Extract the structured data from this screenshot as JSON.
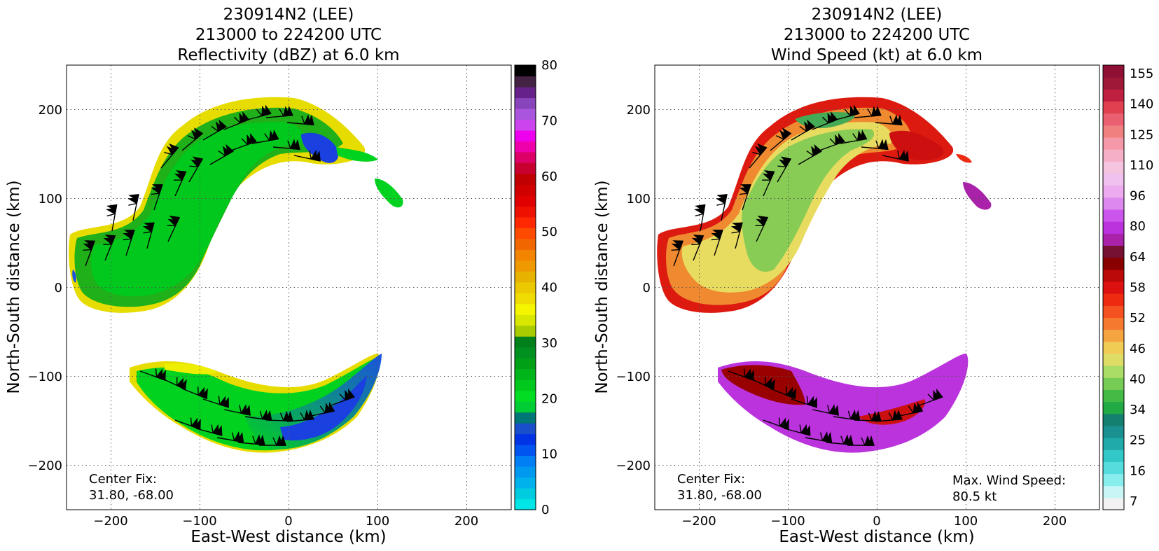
{
  "chart_data": [
    {
      "type": "heatmap",
      "title_lines": [
        "230914N2 (LEE)",
        "213000 to 224200 UTC",
        "Reflectivity (dBZ) at 6.0 km"
      ],
      "xlabel": "East-West distance (km)",
      "ylabel": "North-South distance (km)",
      "xlim": [
        -250,
        250
      ],
      "ylim": [
        -250,
        250
      ],
      "xticks": [
        -200,
        -100,
        0,
        100,
        200
      ],
      "yticks": [
        -200,
        -100,
        0,
        100,
        200
      ],
      "xtick_labels": [
        "−200",
        "−100",
        "0",
        "100",
        "200"
      ],
      "ytick_labels": [
        "−200",
        "−100",
        "0",
        "100",
        "200"
      ],
      "grid": true,
      "annotations": [
        {
          "id": "center-fix",
          "lines": [
            "Center Fix:",
            "31.80, -68.00"
          ],
          "position": "bottom-left"
        }
      ],
      "colorbar": {
        "label_values": [
          "0",
          "10",
          "20",
          "30",
          "40",
          "50",
          "60",
          "70",
          "80"
        ],
        "min": 0,
        "max": 80,
        "colors": [
          "#00e5e5",
          "#00cce0",
          "#00b2ec",
          "#0099f0",
          "#007ff4",
          "#0055f0",
          "#0033e6",
          "#1a4fcc",
          "#007777",
          "#00cc33",
          "#00dd22",
          "#00c81c",
          "#00b519",
          "#00a016",
          "#009020",
          "#00801a",
          "#a8cc00",
          "#d8e600",
          "#f5f500",
          "#f0dc00",
          "#ecc800",
          "#e6b400",
          "#ee9900",
          "#f28400",
          "#f26600",
          "#ff4b00",
          "#ff2800",
          "#ee1100",
          "#e00000",
          "#d00000",
          "#c00000",
          "#c80030",
          "#dd0066",
          "#ee00aa",
          "#ee00ee",
          "#cc44ee",
          "#aa55dd",
          "#8844bb",
          "#662288",
          "#442244",
          "#000000"
        ]
      }
    },
    {
      "type": "heatmap",
      "title_lines": [
        "230914N2 (LEE)",
        "213000 to 224200 UTC",
        "Wind Speed (kt) at 6.0 km"
      ],
      "xlabel": "East-West distance (km)",
      "ylabel": "North-South distance (km)",
      "xlim": [
        -250,
        250
      ],
      "ylim": [
        -250,
        250
      ],
      "xticks": [
        -200,
        -100,
        0,
        100,
        200
      ],
      "yticks": [
        -200,
        -100,
        0,
        100,
        200
      ],
      "xtick_labels": [
        "−200",
        "−100",
        "0",
        "100",
        "200"
      ],
      "ytick_labels": [
        "−200",
        "−100",
        "0",
        "100",
        "200"
      ],
      "grid": true,
      "annotations": [
        {
          "id": "center-fix",
          "lines": [
            "Center Fix:",
            "31.80, -68.00"
          ],
          "position": "bottom-left"
        },
        {
          "id": "max-wind",
          "lines": [
            "Max. Wind Speed:",
            "80.5 kt"
          ],
          "position": "bottom-right"
        }
      ],
      "colorbar": {
        "label_values": [
          "7",
          "16",
          "25",
          "34",
          "40",
          "46",
          "52",
          "58",
          "64",
          "80",
          "96",
          "110",
          "125",
          "140",
          "155"
        ],
        "colors": [
          "#f2f2f2",
          "#c8f5f5",
          "#88eded",
          "#55dddd",
          "#33c8c8",
          "#20aaaa",
          "#1a9090",
          "#148070",
          "#22aa44",
          "#44bb44",
          "#77cc55",
          "#aadd66",
          "#dddd66",
          "#f0cc55",
          "#f5a540",
          "#f57a30",
          "#f55020",
          "#ee2a10",
          "#dd1010",
          "#bb0808",
          "#880000",
          "#771133",
          "#aa22aa",
          "#bb33dd",
          "#cc55ee",
          "#dd88ee",
          "#eeaaee",
          "#f0c0ee",
          "#f5c5e0",
          "#f5b0c8",
          "#f598a8",
          "#f08080",
          "#ea6070",
          "#e04050",
          "#c02040",
          "#a01838",
          "#901035"
        ]
      }
    }
  ],
  "wind_barbs": {
    "note": "barb glyph markers",
    "color": "#000000"
  }
}
